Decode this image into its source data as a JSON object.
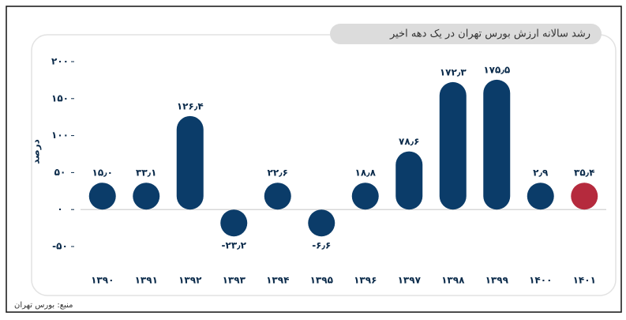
{
  "chart_data": {
    "type": "bar",
    "title": "رشد سالانه ارزش بورس تهران در یک دهه اخیر",
    "ylabel": "درصد",
    "source": "منبع: بورس تهران",
    "categories": [
      "۱۳۹۰",
      "۱۳۹۱",
      "۱۳۹۲",
      "۱۳۹۳",
      "۱۳۹۴",
      "۱۳۹۵",
      "۱۳۹۶",
      "۱۳۹۷",
      "۱۳۹۸",
      "۱۳۹۹",
      "۱۴۰۰",
      "۱۴۰۱"
    ],
    "values": [
      15.0,
      33.1,
      126.4,
      -23.2,
      22.6,
      -6.6,
      18.8,
      78.6,
      172.3,
      175.5,
      2.9,
      35.4
    ],
    "value_labels": [
      "۱۵٫۰",
      "۳۳٫۱",
      "۱۲۶٫۴",
      "-۲۳٫۲",
      "۲۲٫۶",
      "-۶٫۶",
      "۱۸٫۸",
      "۷۸٫۶",
      "۱۷۲٫۳",
      "۱۷۵٫۵",
      "۲٫۹",
      "۳۵٫۴"
    ],
    "colors": [
      "#0b3c69",
      "#0b3c69",
      "#0b3c69",
      "#0b3c69",
      "#0b3c69",
      "#0b3c69",
      "#0b3c69",
      "#0b3c69",
      "#0b3c69",
      "#0b3c69",
      "#0b3c69",
      "#b52a3d"
    ],
    "ylim": [
      -50,
      200
    ],
    "yticks": [
      {
        "value": -50,
        "label": "-۵۰"
      },
      {
        "value": 0,
        "label": "۰"
      },
      {
        "value": 50,
        "label": "۵۰"
      },
      {
        "value": 100,
        "label": "۱۰۰"
      },
      {
        "value": 150,
        "label": "۱۵۰"
      },
      {
        "value": 200,
        "label": "۲۰۰"
      }
    ]
  }
}
